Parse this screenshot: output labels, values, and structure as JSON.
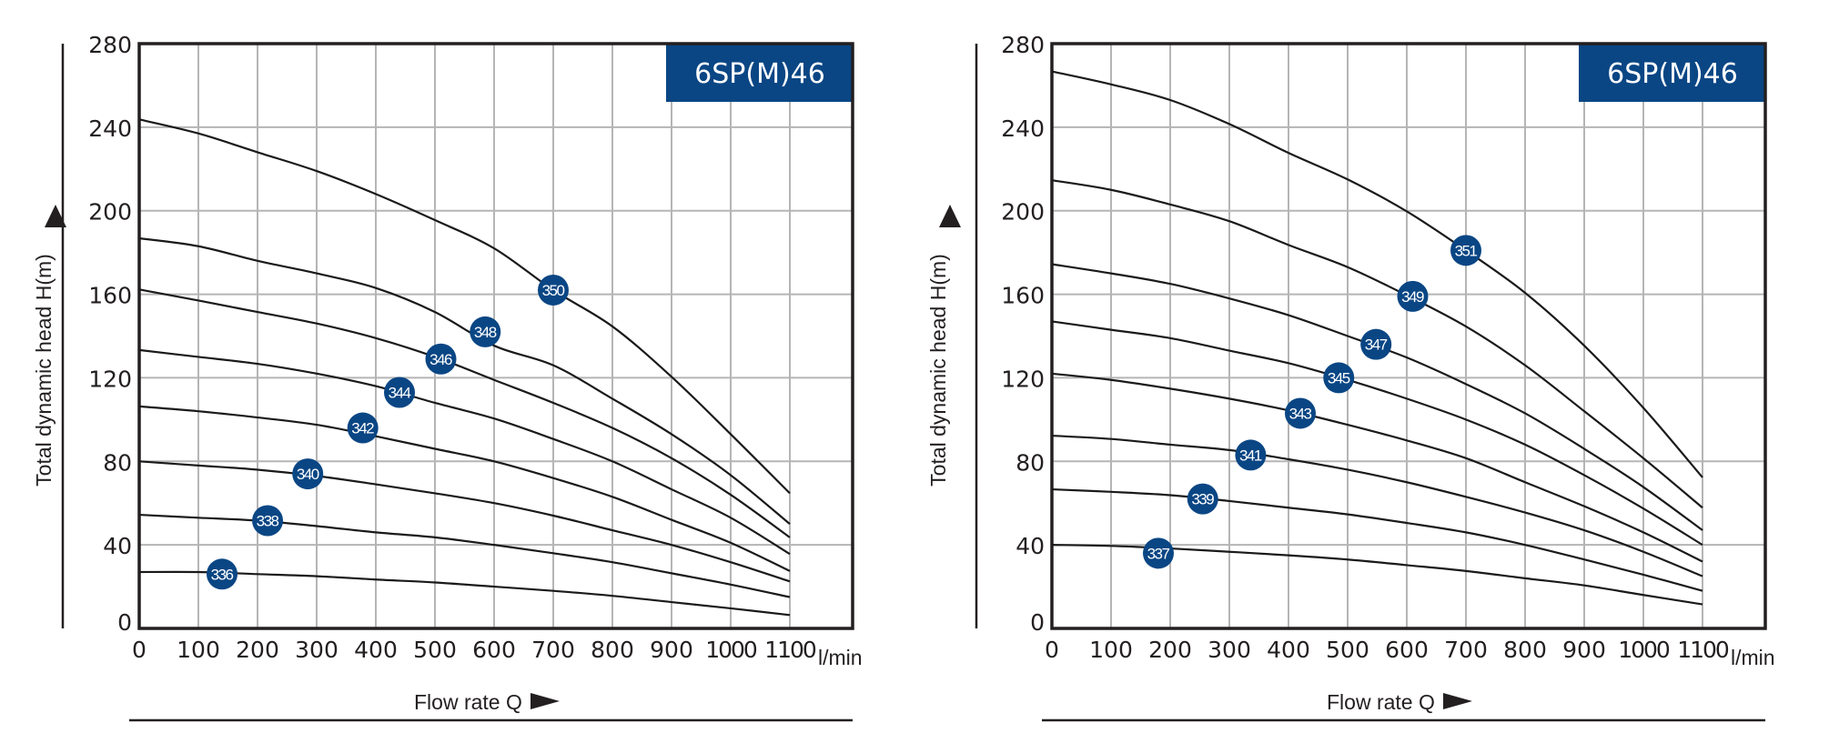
{
  "colors": {
    "accent": "#0a4684",
    "grid": "#b5b5b5",
    "curve": "#1a1a1a"
  },
  "chart_data": [
    {
      "type": "line",
      "title": "6SP(M)46",
      "xlabel": "Flow rate Q",
      "xunit": "l/min",
      "ylabel": "Total dynamic head H(m)",
      "xlim": [
        0,
        1100
      ],
      "ylim": [
        0,
        280
      ],
      "xticks": [
        "0",
        "100",
        "200",
        "300",
        "400",
        "500",
        "600",
        "700",
        "800",
        "900",
        "1000",
        "1100"
      ],
      "yticks": [
        "0",
        "40",
        "80",
        "120",
        "160",
        "200",
        "240",
        "280"
      ],
      "grid": true,
      "x": [
        0,
        100,
        200,
        300,
        400,
        500,
        600,
        700,
        800,
        900,
        1000,
        1100
      ],
      "series": [
        {
          "name": "350",
          "values": [
            243.7,
            237,
            228,
            219,
            208,
            195.5,
            182,
            162,
            144.6,
            120.5,
            93,
            64.7
          ],
          "label_at": [
            700,
            162
          ]
        },
        {
          "name": "348",
          "values": [
            186.8,
            183,
            176,
            170,
            163,
            151.5,
            135.4,
            126,
            110,
            93,
            73.4,
            50
          ],
          "label_at": [
            585,
            142
          ]
        },
        {
          "name": "346",
          "values": [
            162.3,
            157,
            151.5,
            146,
            139,
            130,
            119,
            108,
            96,
            81.5,
            64,
            43.6
          ],
          "label_at": [
            510,
            129
          ]
        },
        {
          "name": "344",
          "values": [
            133.3,
            130,
            126.7,
            122,
            116,
            108,
            100.5,
            90.7,
            80,
            66.6,
            53,
            35.6
          ],
          "label_at": [
            440,
            113
          ]
        },
        {
          "name": "342",
          "values": [
            106.3,
            104,
            101,
            97.5,
            92,
            86,
            80,
            72,
            63,
            52,
            41,
            27.5
          ],
          "label_at": [
            378,
            96
          ]
        },
        {
          "name": "340",
          "values": [
            80,
            78,
            76,
            73,
            69,
            64.7,
            60,
            54,
            47,
            40,
            31.7,
            22.5
          ],
          "label_at": [
            285,
            74
          ]
        },
        {
          "name": "338",
          "values": [
            54.4,
            53,
            51.6,
            49,
            46,
            43.6,
            40,
            36,
            31.7,
            26.4,
            21,
            15
          ],
          "label_at": [
            217,
            51.6
          ]
        },
        {
          "name": "336",
          "values": [
            27,
            27,
            26,
            25,
            23.4,
            22,
            20,
            18,
            15.6,
            12.6,
            9.6,
            6.4
          ],
          "label_at": [
            140,
            26
          ]
        }
      ]
    },
    {
      "type": "line",
      "title": "6SP(M)46",
      "xlabel": "Flow rate Q",
      "xunit": "l/min",
      "ylabel": "Total dynamic head H(m)",
      "xlim": [
        0,
        1100
      ],
      "ylim": [
        0,
        280
      ],
      "xticks": [
        "0",
        "100",
        "200",
        "300",
        "400",
        "500",
        "600",
        "700",
        "800",
        "900",
        "1000",
        "1100"
      ],
      "yticks": [
        "0",
        "40",
        "80",
        "120",
        "160",
        "200",
        "240",
        "280"
      ],
      "grid": true,
      "x": [
        0,
        100,
        200,
        300,
        400,
        500,
        600,
        700,
        800,
        900,
        1000,
        1100
      ],
      "series": [
        {
          "name": "351",
          "values": [
            266.7,
            260.5,
            253,
            241.5,
            227.7,
            215,
            199.7,
            181,
            160.7,
            135.4,
            105.6,
            72.3
          ],
          "label_at": [
            700,
            181
          ]
        },
        {
          "name": "349",
          "values": [
            214.6,
            210,
            203,
            195,
            183.6,
            173,
            159.5,
            144.6,
            126,
            104,
            81.5,
            57.8
          ],
          "label_at": [
            610,
            159
          ]
        },
        {
          "name": "347",
          "values": [
            174.4,
            170,
            165,
            158,
            150,
            140,
            129.7,
            117,
            103,
            86,
            67.7,
            47
          ],
          "label_at": [
            548,
            136
          ]
        },
        {
          "name": "345",
          "values": [
            147,
            143,
            139,
            133,
            127,
            119,
            110,
            100,
            88,
            73.4,
            57.4,
            40
          ],
          "label_at": [
            485,
            120
          ]
        },
        {
          "name": "343",
          "values": [
            122,
            119,
            114.8,
            110,
            104.4,
            97.5,
            90,
            81.5,
            70,
            58.5,
            46,
            32
          ],
          "label_at": [
            420,
            103
          ]
        },
        {
          "name": "341",
          "values": [
            92.3,
            90.7,
            88,
            85.4,
            81,
            76,
            70,
            63,
            55.5,
            47,
            36.7,
            25
          ],
          "label_at": [
            336,
            83
          ]
        },
        {
          "name": "339",
          "values": [
            66.6,
            65.4,
            63.8,
            61,
            57.8,
            54.6,
            50.5,
            46,
            40,
            33,
            25.7,
            18
          ],
          "label_at": [
            255,
            62
          ]
        },
        {
          "name": "337",
          "values": [
            40,
            39.5,
            38.3,
            36.7,
            35,
            33,
            30.3,
            27.5,
            24,
            20.6,
            16,
            11.5
          ],
          "label_at": [
            180,
            36
          ]
        }
      ]
    }
  ]
}
